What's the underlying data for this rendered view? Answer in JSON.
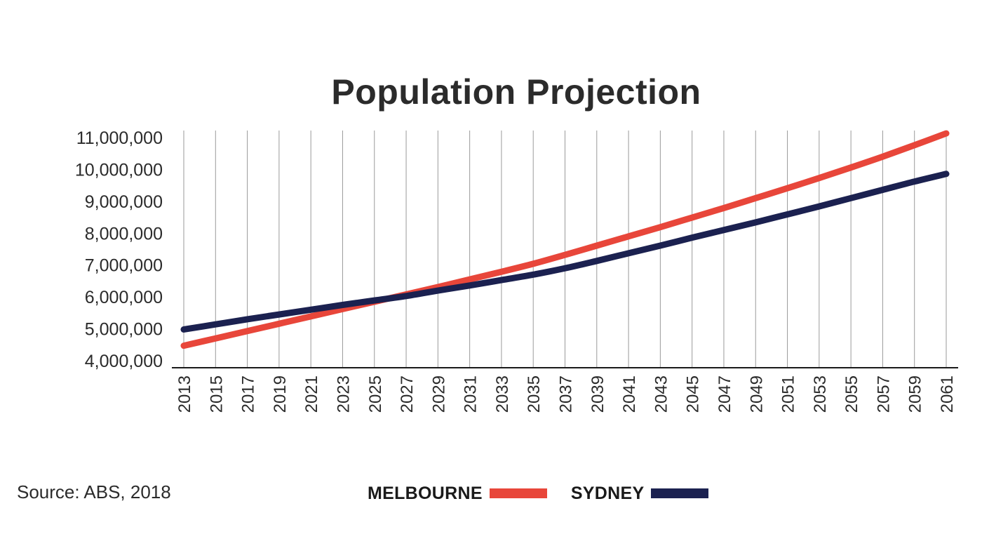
{
  "chart_data": {
    "type": "line",
    "title": "Population Projection",
    "xlabel": "",
    "ylabel": "",
    "x": [
      2013,
      2015,
      2017,
      2019,
      2021,
      2023,
      2025,
      2027,
      2029,
      2031,
      2033,
      2035,
      2037,
      2039,
      2041,
      2043,
      2045,
      2047,
      2049,
      2051,
      2053,
      2055,
      2057,
      2059,
      2061
    ],
    "xlim": [
      2013,
      2061
    ],
    "ylim": [
      4000000,
      11000000
    ],
    "yticks": [
      4000000,
      5000000,
      6000000,
      7000000,
      8000000,
      9000000,
      10000000,
      11000000
    ],
    "ytick_labels": [
      "4,000,000",
      "5,000,000",
      "6,000,000",
      "7,000,000",
      "8,000,000",
      "9,000,000",
      "10,000,000",
      "11,000,000"
    ],
    "xtick_labels": [
      "2013",
      "2015",
      "2017",
      "2019",
      "2021",
      "2023",
      "2025",
      "2027",
      "2029",
      "2031",
      "2033",
      "2035",
      "2037",
      "2039",
      "2041",
      "2043",
      "2045",
      "2047",
      "2049",
      "2051",
      "2053",
      "2055",
      "2057",
      "2059",
      "2061"
    ],
    "grid": "vertical",
    "legend_position": "bottom",
    "series": [
      {
        "name": "MELBOURNE",
        "color": "#e8463a",
        "values": [
          4470000,
          4700000,
          4930000,
          5160000,
          5390000,
          5620000,
          5850000,
          6080000,
          6310000,
          6550000,
          6790000,
          7040000,
          7320000,
          7610000,
          7900000,
          8190000,
          8490000,
          8790000,
          9100000,
          9410000,
          9730000,
          10060000,
          10400000,
          10760000,
          11130000
        ]
      },
      {
        "name": "SYDNEY",
        "color": "#1b2150",
        "values": [
          4980000,
          5140000,
          5300000,
          5450000,
          5600000,
          5750000,
          5890000,
          6030000,
          6200000,
          6360000,
          6530000,
          6700000,
          6900000,
          7130000,
          7370000,
          7610000,
          7860000,
          8100000,
          8340000,
          8590000,
          8840000,
          9100000,
          9360000,
          9620000,
          9860000
        ]
      }
    ]
  },
  "source": "Source: ABS, 2018"
}
